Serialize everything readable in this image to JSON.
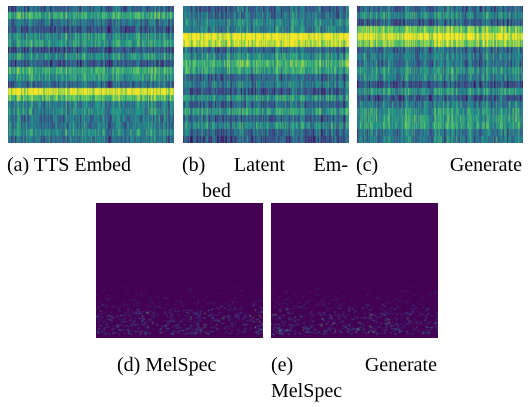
{
  "figure": {
    "subfigures": [
      {
        "id": "a",
        "kind": "embedding-heatmap",
        "caption_lines": [
          "(a) TTS Embed"
        ]
      },
      {
        "id": "b",
        "kind": "embedding-heatmap",
        "caption_lines": [
          "(b) Latent Em-",
          "bed"
        ]
      },
      {
        "id": "c",
        "kind": "embedding-heatmap",
        "caption_lines": [
          "(c) Generate",
          "Embed"
        ]
      },
      {
        "id": "d",
        "kind": "mel-spectrogram",
        "caption_lines": [
          "(d) MelSpec"
        ]
      },
      {
        "id": "e",
        "kind": "mel-spectrogram",
        "caption_lines": [
          "(e) Generate",
          "MelSpec"
        ]
      }
    ],
    "colormap": {
      "name": "viridis",
      "stops": [
        "#440154",
        "#3b528b",
        "#21918c",
        "#5ec962",
        "#fde725"
      ]
    }
  }
}
